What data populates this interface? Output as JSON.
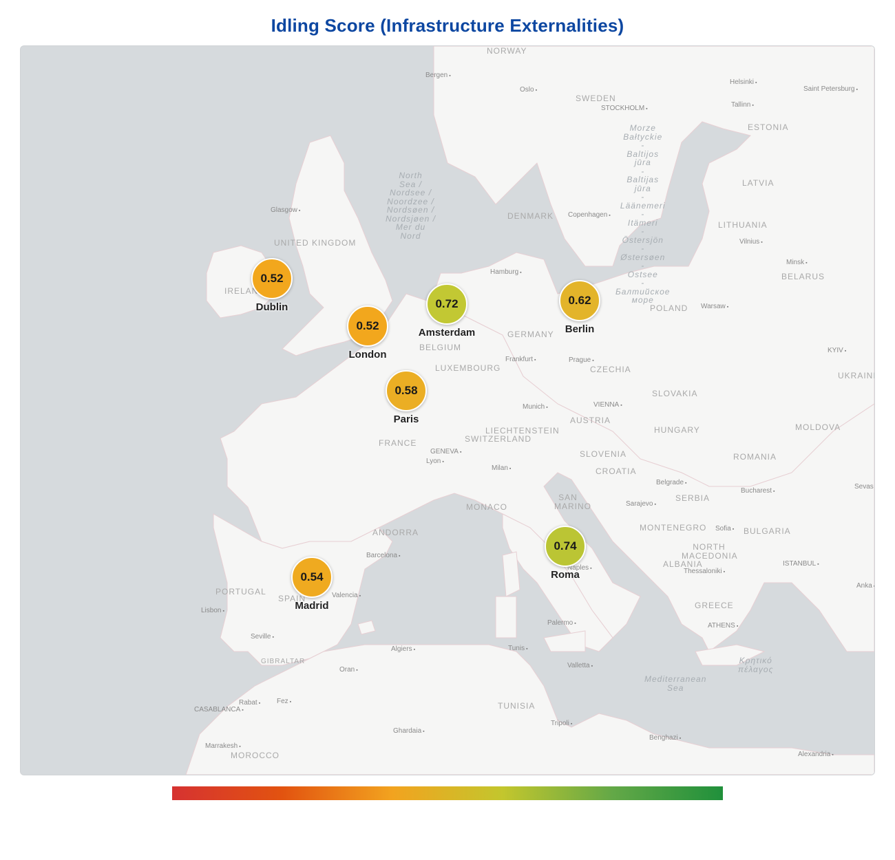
{
  "title": "Idling Score (Infrastructure Externalities)",
  "cities": [
    {
      "name": "Dublin",
      "score": "0.52",
      "color": "#f2a71d"
    },
    {
      "name": "London",
      "score": "0.52",
      "color": "#f2a71d"
    },
    {
      "name": "Amsterdam",
      "score": "0.72",
      "color": "#c2c833"
    },
    {
      "name": "Berlin",
      "score": "0.62",
      "color": "#e3b42a"
    },
    {
      "name": "Paris",
      "score": "0.58",
      "color": "#ebae24"
    },
    {
      "name": "Madrid",
      "score": "0.54",
      "color": "#efaa20"
    },
    {
      "name": "Roma",
      "score": "0.74",
      "color": "#bbc534"
    }
  ],
  "basemap": {
    "countries": [
      "NORWAY",
      "SWEDEN",
      "ESTONIA",
      "LATVIA",
      "LITHUANIA",
      "DENMARK",
      "UNITED KINGDOM",
      "IRELAND",
      "BELARUS",
      "POLAND",
      "GERMANY",
      "BELGIUM",
      "LUXEMBOURG",
      "CZECHIA",
      "UKRAINE",
      "SLOVAKIA",
      "AUSTRIA",
      "LIECHTENSTEIN",
      "SWITZERLAND",
      "HUNGARY",
      "MOLDOVA",
      "FRANCE",
      "SLOVENIA",
      "CROATIA",
      "ROMANIA",
      "SERBIA",
      "MONACO",
      "SAN MARINO",
      "BULGARIA",
      "MONTENEGRO",
      "ANDORRA",
      "NORTH MACEDONIA",
      "ALBANIA",
      "PORTUGAL",
      "SPAIN",
      "GREECE",
      "GIBRALTAR",
      "TUNISIA",
      "MOROCCO"
    ],
    "cities": [
      "Bergen",
      "Oslo",
      "Helsinki",
      "Saint Petersburg",
      "Tallinn",
      "STOCKHOLM",
      "Glasgow",
      "Copenhagen",
      "Vilnius",
      "Minsk",
      "Hamburg",
      "Warsaw",
      "Frankfurt",
      "Prague",
      "KYIV",
      "Munich",
      "VIENNA",
      "GENEVA",
      "Lyon",
      "Milan",
      "Belgrade",
      "Bucharest",
      "Sarajevo",
      "Sofia",
      "Barcelona",
      "Naples",
      "Thessaloniki",
      "ISTANBUL",
      "Valencia",
      "Lisbon",
      "ATHENS",
      "Seville",
      "Palermo",
      "Algiers",
      "Tunis",
      "Oran",
      "Valletta",
      "Rabat",
      "Fez",
      "CASABLANCA",
      "Ghardaia",
      "Tripoli",
      "Benghazi",
      "Marrakesh",
      "Alexandria",
      "Sevas",
      "Anka"
    ],
    "seas": [
      "North\nSea /\nNordsee /\nNoordzee /\nNordsøen /\nNordsjøen /\nMer du\nNord",
      "Morze\nBałtyckie\n-\nBaltijos\njūra\n-\nBaltijas\njūra\n-\nLäänemeri\n-\nItämeri\n-\nÖstersjön\n-\nØstersøen\n-\nOstsee\n-\nБалтийское\nморе",
      "Mediterranean\nSea",
      "Κρητικό\nπέλαγος"
    ]
  },
  "legend": {
    "colors": [
      "#d63231",
      "#e25310",
      "#f2a31f",
      "#c3c62d",
      "#63a847",
      "#20903b"
    ]
  }
}
